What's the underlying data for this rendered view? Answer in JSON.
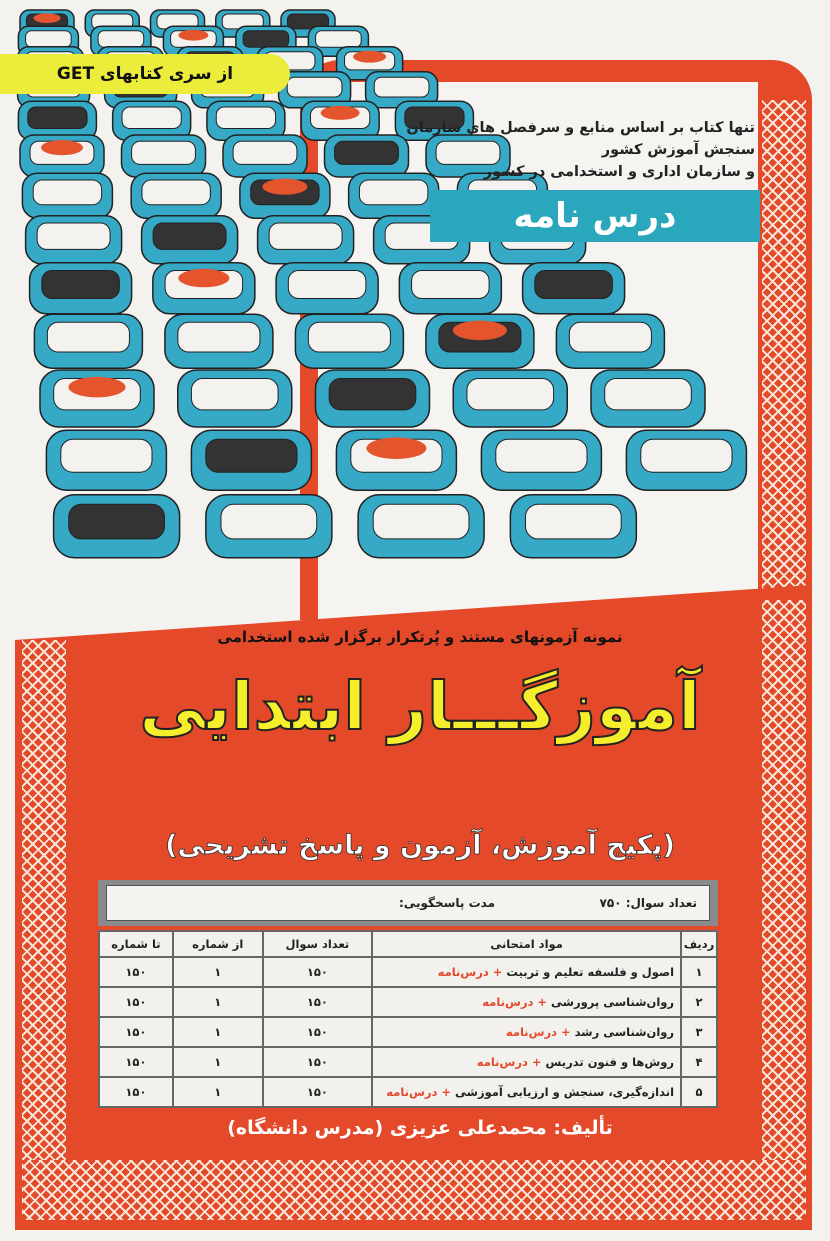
{
  "series_badge": "از سری کتابهای GET",
  "tagline": [
    "تنها کتاب بر اساس منابع و سرفصل های سازمان سنجش آموزش کشور",
    "و سازمان اداری و استخدامی در کشور"
  ],
  "band_label": "درس نامه",
  "subtitle_top": "نمونه آزمونهای مستند و پُرتکرار برگزار شده استخدامی",
  "title": "آموزگـــار ابتدایی",
  "subtitle": "(پکیج آموزش، آزمون و پاسخ تشریحی)",
  "info": {
    "count_label": "تعداد سوال:",
    "count_value": "۷۵۰",
    "duration_label": "مدت پاسخگویی:"
  },
  "table": {
    "headers": [
      "ردیف",
      "مواد امتحانی",
      "تعداد سوال",
      "از شماره",
      "تا شماره"
    ],
    "suffix": "+ درس‌نامه",
    "rows": [
      [
        "۱",
        "اصول و فلسفه تعلیم و تربیت",
        "۱۵۰",
        "۱",
        "۱۵۰"
      ],
      [
        "۲",
        "روان‌شناسی پرورشی",
        "۱۵۰",
        "۱",
        "۱۵۰"
      ],
      [
        "۳",
        "روان‌شناسی رشد",
        "۱۵۰",
        "۱",
        "۱۵۰"
      ],
      [
        "۴",
        "روش‌ها و فنون تدریس",
        "۱۵۰",
        "۱",
        "۱۵۰"
      ],
      [
        "۵",
        "اندازه‌گیری، سنجش و ارزیابی آموزشی",
        "۱۵۰",
        "۱",
        "۱۵۰"
      ]
    ]
  },
  "author": "تألیف: محمدعلی عزیزی (مدرس دانشگاه)",
  "colors": {
    "red": "#e4492a",
    "teal": "#2aa6bd",
    "yellow": "#f4ee2c"
  }
}
